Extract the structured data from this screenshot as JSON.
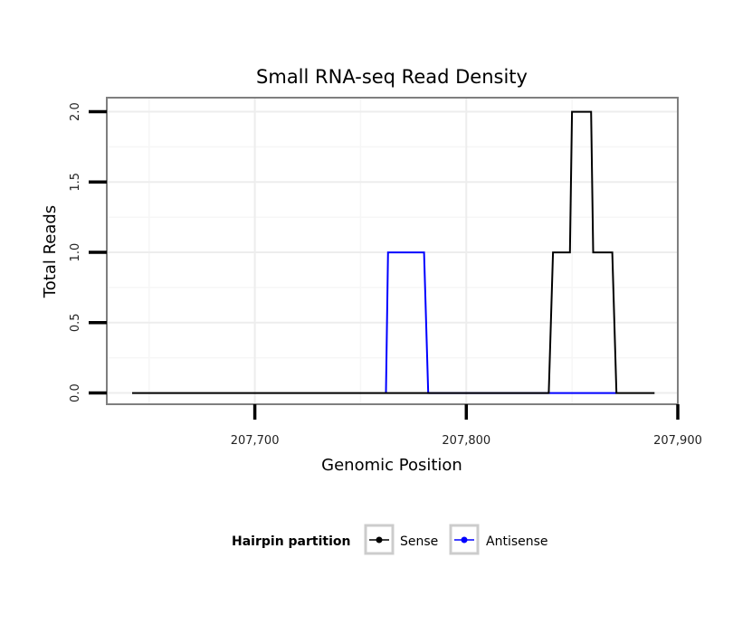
{
  "chart_data": {
    "type": "line",
    "title": "Small RNA-seq Read Density",
    "xlabel": "Genomic Position",
    "ylabel": "Total Reads",
    "xlim": [
      207630,
      207900
    ],
    "ylim": [
      -0.08,
      2.1
    ],
    "x_ticks": [
      207700,
      207800,
      207900
    ],
    "x_tick_labels": [
      "207,700",
      "207,800",
      "207,900"
    ],
    "y_ticks": [
      0,
      0.5,
      1,
      1.5,
      2
    ],
    "y_tick_labels": [
      "0.0",
      "0.5",
      "1.0",
      "1.5",
      "2.0"
    ],
    "grid": true,
    "legend": {
      "title": "Hairpin partition",
      "position": "bottom"
    },
    "series": [
      {
        "name": "Sense",
        "color": "#000000",
        "x": [
          207642,
          207839,
          207841,
          207849,
          207850,
          207859,
          207860,
          207869,
          207871,
          207889
        ],
        "y": [
          0,
          0,
          1,
          1,
          2,
          2,
          1,
          1,
          0,
          0
        ]
      },
      {
        "name": "Antisense",
        "color": "#0000ff",
        "x": [
          207762,
          207763,
          207780,
          207782,
          207839,
          207841,
          207869,
          207871
        ],
        "y": [
          0,
          1,
          1,
          0,
          0,
          0,
          0,
          0
        ]
      }
    ]
  }
}
